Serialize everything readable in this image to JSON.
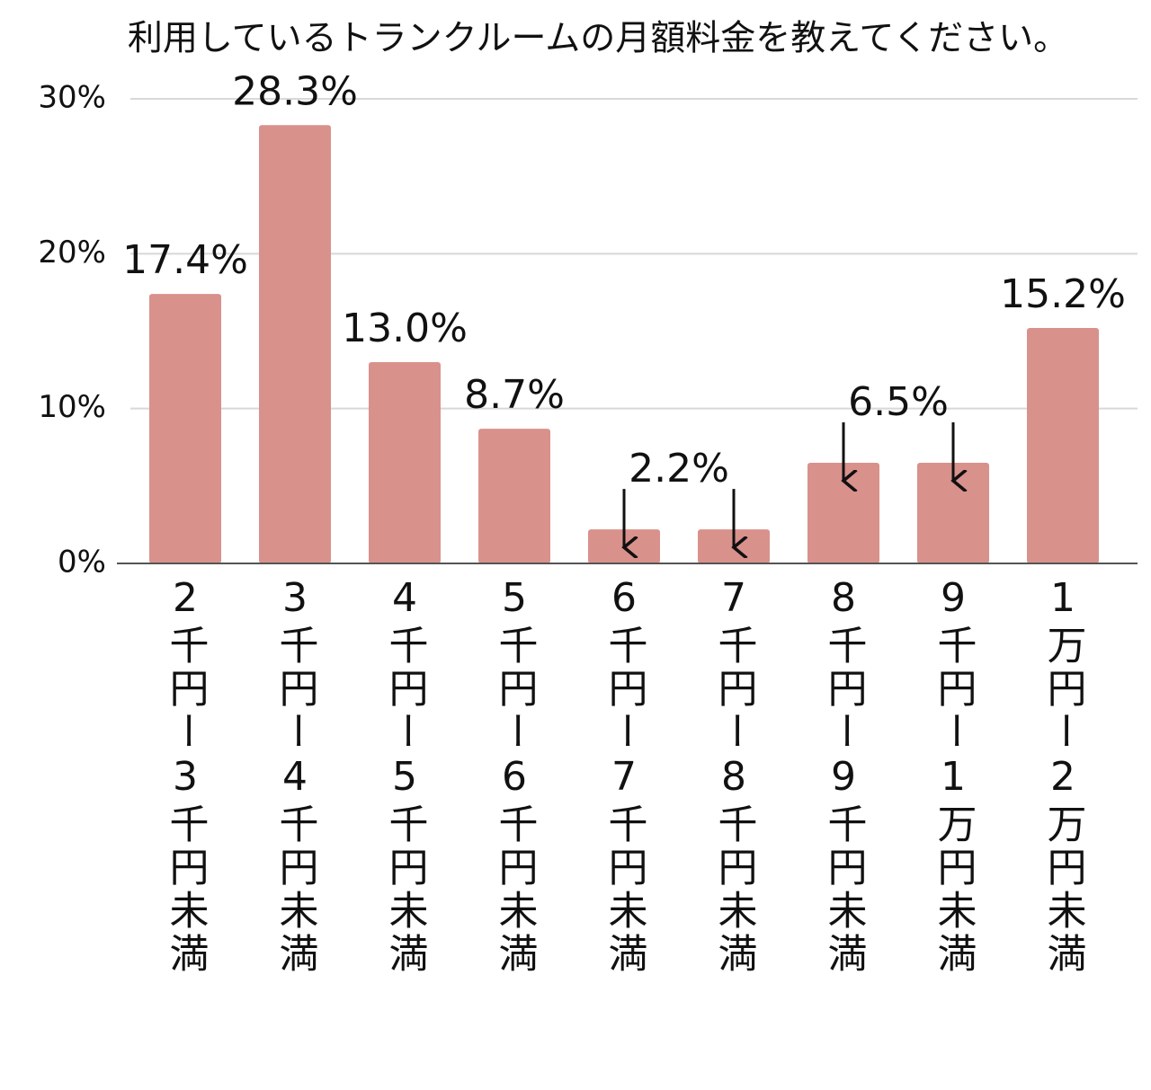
{
  "chart_data": {
    "type": "bar",
    "title": "利用しているトランクルームの月額料金を教えてください。",
    "categories": [
      "2千円ー3千円未満",
      "3千円ー4千円未満",
      "4千円ー5千円未満",
      "5千円ー6千円未満",
      "6千円ー7千円未満",
      "7千円ー8千円未満",
      "8千円ー9千円未満",
      "9千円ー1万円未満",
      "1万円ー2万円未満"
    ],
    "values": [
      17.4,
      28.3,
      13.0,
      8.7,
      2.2,
      2.2,
      6.5,
      6.5,
      15.2
    ],
    "value_labels": [
      "17.4%",
      "28.3%",
      "13.0%",
      "8.7%",
      "2.2%",
      null,
      "6.5%",
      null,
      "15.2%"
    ],
    "color": "#d9918c",
    "ylim": [
      0,
      30
    ],
    "yticks": [
      {
        "value": 0,
        "label": "0%"
      },
      {
        "value": 10,
        "label": "10%"
      },
      {
        "value": 20,
        "label": "20%"
      },
      {
        "value": 30,
        "label": "30%"
      }
    ],
    "grid": true
  }
}
